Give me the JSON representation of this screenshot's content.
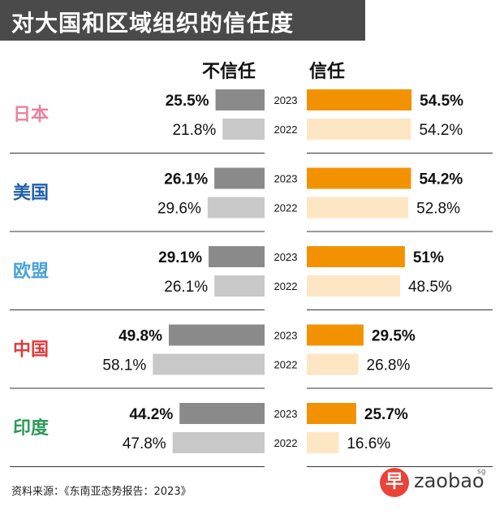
{
  "title": "对大国和区域组织的信任度",
  "distrust_label": "不信任",
  "trust_label": "信任",
  "source": "资料来源：《东南亚态势报告：2023》",
  "logo": {
    "mark": "早",
    "text": "zaobao",
    "suffix": "sg"
  },
  "colors": {
    "distrust_2023": "#8a8a8a",
    "distrust_2022": "#c8c8c8",
    "trust_2023": "#f39200",
    "trust_2022": "#fde6c4",
    "title_bg": "#4a4a4a"
  },
  "chart_data": {
    "type": "bar",
    "years": [
      "2023",
      "2022"
    ],
    "groups": [
      {
        "name": "日本",
        "color": "#e8829c",
        "distrust": [
          25.5,
          21.8
        ],
        "trust": [
          54.5,
          54.2
        ]
      },
      {
        "name": "美国",
        "color": "#1f5fa8",
        "distrust": [
          26.1,
          29.6
        ],
        "trust": [
          54.2,
          52.8
        ]
      },
      {
        "name": "欧盟",
        "color": "#4aa3d8",
        "distrust": [
          29.1,
          26.1
        ],
        "trust": [
          51,
          48.5
        ]
      },
      {
        "name": "中国",
        "color": "#e03a3a",
        "distrust": [
          49.8,
          58.1
        ],
        "trust": [
          29.5,
          26.8
        ]
      },
      {
        "name": "印度",
        "color": "#2a9a5a",
        "distrust": [
          44.2,
          47.8
        ],
        "trust": [
          25.7,
          16.6
        ]
      }
    ],
    "value_labels": {
      "日本": {
        "distrust": [
          "25.5%",
          "21.8%"
        ],
        "trust": [
          "54.5%",
          "54.2%"
        ]
      },
      "美国": {
        "distrust": [
          "26.1%",
          "29.6%"
        ],
        "trust": [
          "54.2%",
          "52.8%"
        ]
      },
      "欧盟": {
        "distrust": [
          "29.1%",
          "26.1%"
        ],
        "trust": [
          "51%",
          "48.5%"
        ]
      },
      "中国": {
        "distrust": [
          "49.8%",
          "58.1%"
        ],
        "trust": [
          "29.5%",
          "26.8%"
        ]
      },
      "印度": {
        "distrust": [
          "44.2%",
          "47.8%"
        ],
        "trust": [
          "25.7%",
          "16.6%"
        ]
      }
    }
  }
}
